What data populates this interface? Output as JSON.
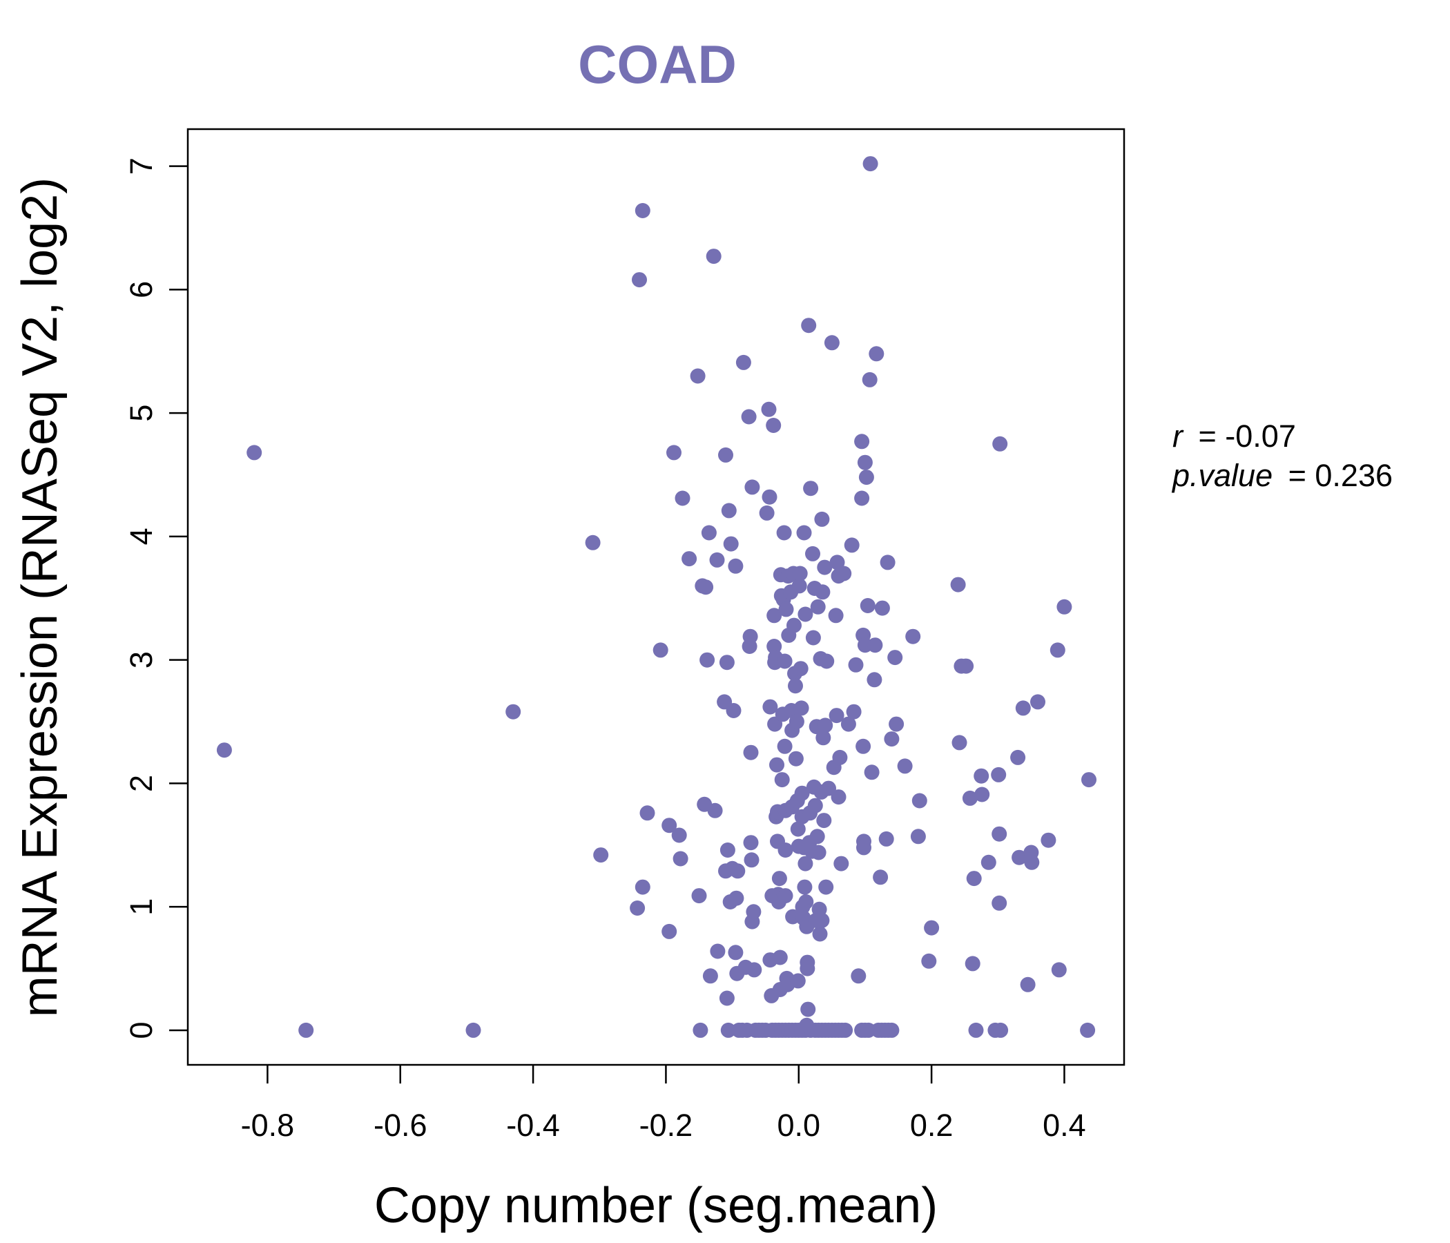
{
  "chart_data": {
    "type": "scatter",
    "title": "COAD",
    "xlabel": "Copy number (seg.mean)",
    "ylabel": "mRNA Expression (RNASeq V2, log2)",
    "xlim": [
      -0.92,
      0.49
    ],
    "ylim": [
      -0.28,
      7.3
    ],
    "xticks": [
      -0.8,
      -0.6,
      -0.4,
      -0.2,
      0.0,
      0.2,
      0.4
    ],
    "xtick_labels": [
      "-0.8",
      "-0.6",
      "-0.4",
      "-0.2",
      "0.0",
      "0.2",
      "0.4"
    ],
    "yticks": [
      0,
      1,
      2,
      3,
      4,
      5,
      6,
      7
    ],
    "ytick_labels": [
      "0",
      "1",
      "2",
      "3",
      "4",
      "5",
      "6",
      "7"
    ],
    "color": "#7570b3",
    "stats": {
      "r_label": "r",
      "r_value": "= -0.07",
      "p_label": "p.value",
      "p_value": "= 0.236"
    },
    "points": [
      [
        -0.865,
        2.27
      ],
      [
        -0.82,
        4.68
      ],
      [
        -0.742,
        0.0
      ],
      [
        -0.49,
        0.0
      ],
      [
        -0.43,
        2.58
      ],
      [
        -0.31,
        3.95
      ],
      [
        -0.298,
        1.42
      ],
      [
        -0.24,
        6.08
      ],
      [
        -0.235,
        6.64
      ],
      [
        -0.243,
        0.99
      ],
      [
        -0.235,
        1.16
      ],
      [
        -0.228,
        1.76
      ],
      [
        -0.208,
        3.08
      ],
      [
        -0.195,
        1.66
      ],
      [
        -0.195,
        0.8
      ],
      [
        -0.188,
        4.68
      ],
      [
        -0.18,
        1.58
      ],
      [
        -0.175,
        4.31
      ],
      [
        -0.178,
        1.39
      ],
      [
        -0.165,
        3.82
      ],
      [
        -0.152,
        5.3
      ],
      [
        -0.15,
        1.09
      ],
      [
        -0.148,
        0.0
      ],
      [
        -0.145,
        3.6
      ],
      [
        -0.142,
        1.83
      ],
      [
        -0.14,
        3.59
      ],
      [
        -0.138,
        3.0
      ],
      [
        -0.135,
        4.03
      ],
      [
        -0.133,
        0.44
      ],
      [
        -0.128,
        6.27
      ],
      [
        -0.126,
        1.78
      ],
      [
        -0.123,
        3.81
      ],
      [
        -0.122,
        0.64
      ],
      [
        -0.112,
        2.66
      ],
      [
        -0.11,
        4.66
      ],
      [
        -0.11,
        1.29
      ],
      [
        -0.108,
        2.98
      ],
      [
        -0.108,
        0.26
      ],
      [
        -0.107,
        1.46
      ],
      [
        -0.105,
        4.21
      ],
      [
        -0.103,
        1.04
      ],
      [
        -0.102,
        3.94
      ],
      [
        -0.1,
        1.31
      ],
      [
        -0.106,
        0.0
      ],
      [
        -0.098,
        2.59
      ],
      [
        -0.095,
        3.76
      ],
      [
        -0.095,
        0.63
      ],
      [
        -0.094,
        1.07
      ],
      [
        -0.093,
        0.46
      ],
      [
        -0.092,
        1.29
      ],
      [
        -0.09,
        0.0
      ],
      [
        -0.083,
        5.41
      ],
      [
        -0.08,
        0.51
      ],
      [
        -0.078,
        0.0
      ],
      [
        -0.075,
        4.97
      ],
      [
        -0.074,
        3.11
      ],
      [
        -0.073,
        3.19
      ],
      [
        -0.072,
        2.25
      ],
      [
        -0.072,
        1.52
      ],
      [
        -0.071,
        1.38
      ],
      [
        -0.07,
        4.4
      ],
      [
        -0.07,
        0.88
      ],
      [
        -0.068,
        0.96
      ],
      [
        -0.067,
        0.49
      ],
      [
        -0.065,
        0.0
      ],
      [
        -0.06,
        0.0
      ],
      [
        -0.055,
        0.0
      ],
      [
        -0.05,
        0.0
      ],
      [
        -0.048,
        4.19
      ],
      [
        -0.045,
        5.03
      ],
      [
        -0.044,
        4.32
      ],
      [
        -0.043,
        2.62
      ],
      [
        -0.043,
        0.57
      ],
      [
        -0.041,
        0.28
      ],
      [
        -0.04,
        1.09
      ],
      [
        -0.038,
        4.9
      ],
      [
        -0.037,
        3.36
      ],
      [
        -0.037,
        3.11
      ],
      [
        -0.036,
        2.48
      ],
      [
        -0.036,
        2.98
      ],
      [
        -0.035,
        3.02
      ],
      [
        -0.034,
        1.73
      ],
      [
        -0.033,
        2.15
      ],
      [
        -0.032,
        1.77
      ],
      [
        -0.032,
        1.53
      ],
      [
        -0.031,
        1.1
      ],
      [
        -0.03,
        1.04
      ],
      [
        -0.029,
        1.23
      ],
      [
        -0.028,
        0.59
      ],
      [
        -0.028,
        0.33
      ],
      [
        -0.027,
        3.69
      ],
      [
        -0.026,
        3.52
      ],
      [
        -0.025,
        2.03
      ],
      [
        -0.024,
        2.56
      ],
      [
        -0.023,
        3.49
      ],
      [
        -0.022,
        4.03
      ],
      [
        -0.021,
        2.99
      ],
      [
        -0.021,
        2.3
      ],
      [
        -0.02,
        1.78
      ],
      [
        -0.02,
        1.46
      ],
      [
        -0.02,
        1.09
      ],
      [
        -0.019,
        3.41
      ],
      [
        -0.018,
        0.42
      ],
      [
        -0.017,
        0.37
      ],
      [
        -0.016,
        3.68
      ],
      [
        -0.015,
        3.2
      ],
      [
        -0.012,
        3.55
      ],
      [
        -0.011,
        2.59
      ],
      [
        -0.01,
        2.43
      ],
      [
        -0.01,
        1.81
      ],
      [
        -0.009,
        0.92
      ],
      [
        -0.008,
        3.7
      ],
      [
        -0.007,
        3.28
      ],
      [
        -0.006,
        2.89
      ],
      [
        -0.005,
        2.79
      ],
      [
        -0.004,
        2.2
      ],
      [
        -0.003,
        2.5
      ],
      [
        -0.002,
        1.86
      ],
      [
        -0.001,
        1.63
      ],
      [
        -0.001,
        0.4
      ],
      [
        0.0,
        1.49
      ],
      [
        0.001,
        3.6
      ],
      [
        0.002,
        3.7
      ],
      [
        0.003,
        2.93
      ],
      [
        0.004,
        2.61
      ],
      [
        0.005,
        1.92
      ],
      [
        0.005,
        1.73
      ],
      [
        0.006,
        1.0
      ],
      [
        0.007,
        0.91
      ],
      [
        0.008,
        4.03
      ],
      [
        0.008,
        1.48
      ],
      [
        0.009,
        1.16
      ],
      [
        0.01,
        3.37
      ],
      [
        0.01,
        1.35
      ],
      [
        0.011,
        1.04
      ],
      [
        0.012,
        0.84
      ],
      [
        0.013,
        0.55
      ],
      [
        0.013,
        0.5
      ],
      [
        0.014,
        0.17
      ],
      [
        0.015,
        5.71
      ],
      [
        0.016,
        1.52
      ],
      [
        0.017,
        1.76
      ],
      [
        0.018,
        4.39
      ],
      [
        0.018,
        0.0
      ],
      [
        0.02,
        1.45
      ],
      [
        0.021,
        3.86
      ],
      [
        0.022,
        3.18
      ],
      [
        0.023,
        1.97
      ],
      [
        0.024,
        3.58
      ],
      [
        0.025,
        1.82
      ],
      [
        0.026,
        0.89
      ],
      [
        0.027,
        2.46
      ],
      [
        0.028,
        1.57
      ],
      [
        0.029,
        3.43
      ],
      [
        0.03,
        1.44
      ],
      [
        0.031,
        0.98
      ],
      [
        0.032,
        0.78
      ],
      [
        0.033,
        3.01
      ],
      [
        0.034,
        1.93
      ],
      [
        0.035,
        4.14
      ],
      [
        0.035,
        0.89
      ],
      [
        0.036,
        3.55
      ],
      [
        0.037,
        2.37
      ],
      [
        0.038,
        1.7
      ],
      [
        0.039,
        3.75
      ],
      [
        0.04,
        2.47
      ],
      [
        0.041,
        1.16
      ],
      [
        0.042,
        2.99
      ],
      [
        0.045,
        1.96
      ],
      [
        0.05,
        5.57
      ],
      [
        0.053,
        2.13
      ],
      [
        0.056,
        3.36
      ],
      [
        0.057,
        2.55
      ],
      [
        0.058,
        3.79
      ],
      [
        0.06,
        1.89
      ],
      [
        0.06,
        3.68
      ],
      [
        0.062,
        2.21
      ],
      [
        0.064,
        1.35
      ],
      [
        0.068,
        3.7
      ],
      [
        0.075,
        2.48
      ],
      [
        0.08,
        3.93
      ],
      [
        0.083,
        2.58
      ],
      [
        0.086,
        2.96
      ],
      [
        0.09,
        0.44
      ],
      [
        0.095,
        4.77
      ],
      [
        0.095,
        4.31
      ],
      [
        0.097,
        3.2
      ],
      [
        0.097,
        2.3
      ],
      [
        0.098,
        1.53
      ],
      [
        0.098,
        1.48
      ],
      [
        0.1,
        4.6
      ],
      [
        0.1,
        3.12
      ],
      [
        0.102,
        4.48
      ],
      [
        0.104,
        3.44
      ],
      [
        0.107,
        5.27
      ],
      [
        0.108,
        7.02
      ],
      [
        0.11,
        2.09
      ],
      [
        0.114,
        2.84
      ],
      [
        0.115,
        3.12
      ],
      [
        0.117,
        5.48
      ],
      [
        0.12,
        0.0
      ],
      [
        0.123,
        1.24
      ],
      [
        0.126,
        3.42
      ],
      [
        0.132,
        1.55
      ],
      [
        0.134,
        3.79
      ],
      [
        0.14,
        2.36
      ],
      [
        0.145,
        3.02
      ],
      [
        0.147,
        2.48
      ],
      [
        0.16,
        2.14
      ],
      [
        0.172,
        3.19
      ],
      [
        0.18,
        1.57
      ],
      [
        0.182,
        1.86
      ],
      [
        0.196,
        0.56
      ],
      [
        0.2,
        0.83
      ],
      [
        0.24,
        3.61
      ],
      [
        0.242,
        2.33
      ],
      [
        0.245,
        2.95
      ],
      [
        0.252,
        2.95
      ],
      [
        0.258,
        1.88
      ],
      [
        0.262,
        0.54
      ],
      [
        0.264,
        1.23
      ],
      [
        0.267,
        0.0
      ],
      [
        0.275,
        2.06
      ],
      [
        0.276,
        1.91
      ],
      [
        0.286,
        1.36
      ],
      [
        0.296,
        0.0
      ],
      [
        0.301,
        2.07
      ],
      [
        0.302,
        1.59
      ],
      [
        0.302,
        1.03
      ],
      [
        0.303,
        4.75
      ],
      [
        0.304,
        0.0
      ],
      [
        0.33,
        2.21
      ],
      [
        0.332,
        1.4
      ],
      [
        0.338,
        2.61
      ],
      [
        0.345,
        0.37
      ],
      [
        0.35,
        1.44
      ],
      [
        0.351,
        1.36
      ],
      [
        0.36,
        2.66
      ],
      [
        0.376,
        1.54
      ],
      [
        0.39,
        3.08
      ],
      [
        0.392,
        0.49
      ],
      [
        0.4,
        3.43
      ],
      [
        0.435,
        0.0
      ],
      [
        0.437,
        2.03
      ],
      [
        -0.085,
        0.0
      ],
      [
        -0.04,
        0.0
      ],
      [
        -0.035,
        0.0
      ],
      [
        -0.03,
        0.0
      ],
      [
        -0.025,
        0.0
      ],
      [
        -0.02,
        0.0
      ],
      [
        -0.015,
        0.0
      ],
      [
        -0.01,
        0.0
      ],
      [
        -0.005,
        0.0
      ],
      [
        0.0,
        0.0
      ],
      [
        0.005,
        0.0
      ],
      [
        0.01,
        0.0
      ],
      [
        0.012,
        0.04
      ],
      [
        0.025,
        0.0
      ],
      [
        0.03,
        0.0
      ],
      [
        0.035,
        0.0
      ],
      [
        0.04,
        0.0
      ],
      [
        0.045,
        0.0
      ],
      [
        0.05,
        0.0
      ],
      [
        0.055,
        0.0
      ],
      [
        0.06,
        0.0
      ],
      [
        0.065,
        0.0
      ],
      [
        0.07,
        0.0
      ],
      [
        0.095,
        0.0
      ],
      [
        0.1,
        0.0
      ],
      [
        0.105,
        0.0
      ],
      [
        0.125,
        0.0
      ],
      [
        0.13,
        0.0
      ],
      [
        0.135,
        0.0
      ],
      [
        0.14,
        0.0
      ]
    ]
  }
}
